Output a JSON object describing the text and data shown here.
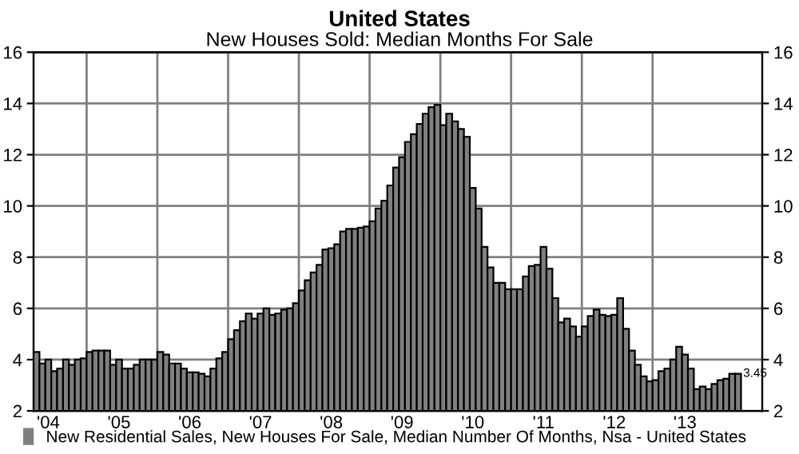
{
  "chart_data": {
    "type": "bar",
    "title": "United States",
    "subtitle": "New Houses Sold: Median Months For Sale",
    "categories": [
      null,
      null,
      "'04",
      null,
      null,
      null,
      null,
      null,
      null,
      null,
      null,
      null,
      null,
      null,
      "'05",
      null,
      null,
      null,
      null,
      null,
      null,
      null,
      null,
      null,
      null,
      null,
      "'06",
      null,
      null,
      null,
      null,
      null,
      null,
      null,
      null,
      null,
      null,
      null,
      "'07",
      null,
      null,
      null,
      null,
      null,
      null,
      null,
      null,
      null,
      null,
      null,
      "'08",
      null,
      null,
      null,
      null,
      null,
      null,
      null,
      null,
      null,
      null,
      null,
      "'09",
      null,
      null,
      null,
      null,
      null,
      null,
      null,
      null,
      null,
      null,
      null,
      "'10",
      null,
      null,
      null,
      null,
      null,
      null,
      null,
      null,
      null,
      null,
      null,
      "'11",
      null,
      null,
      null,
      null,
      null,
      null,
      null,
      null,
      null,
      null,
      null,
      "'12",
      null,
      null,
      null,
      null,
      null,
      null,
      null,
      null,
      null,
      null,
      null,
      "'13",
      null,
      null,
      null,
      null,
      null,
      null,
      null,
      null,
      null
    ],
    "series": [
      {
        "name": "New Residential Sales, New Houses For Sale, Median Number Of Months, Nsa - United States",
        "color": "#808080",
        "values": [
          4.3,
          3.85,
          4.0,
          3.55,
          3.65,
          4.0,
          3.8,
          4.0,
          4.05,
          4.3,
          4.35,
          4.35,
          4.35,
          3.8,
          4.0,
          3.65,
          3.65,
          3.8,
          4.0,
          4.0,
          4.0,
          4.3,
          4.2,
          3.85,
          3.85,
          3.65,
          3.5,
          3.5,
          3.45,
          3.35,
          3.65,
          4.05,
          4.3,
          4.8,
          5.15,
          5.5,
          5.8,
          5.6,
          5.8,
          6.0,
          5.75,
          5.8,
          5.95,
          6.0,
          6.2,
          6.7,
          7.1,
          7.4,
          7.7,
          8.3,
          8.35,
          8.5,
          9.0,
          9.1,
          9.1,
          9.15,
          9.2,
          9.4,
          9.9,
          10.2,
          10.8,
          11.5,
          11.9,
          12.5,
          12.8,
          13.2,
          13.6,
          13.85,
          13.95,
          13.15,
          13.6,
          13.3,
          13.0,
          12.7,
          10.7,
          9.9,
          8.4,
          7.6,
          7.0,
          7.0,
          6.75,
          6.75,
          6.75,
          7.25,
          7.65,
          7.7,
          8.4,
          7.55,
          6.4,
          5.45,
          5.6,
          5.3,
          4.9,
          5.3,
          5.7,
          5.95,
          5.75,
          5.7,
          5.75,
          6.4,
          5.2,
          4.35,
          3.8,
          3.35,
          3.15,
          3.2,
          3.55,
          3.65,
          4.0,
          4.5,
          4.2,
          3.65,
          2.85,
          2.95,
          2.85,
          3.05,
          3.2,
          3.25,
          3.45,
          3.45
        ]
      }
    ],
    "ylim": [
      2,
      16
    ],
    "yticks": [
      2,
      4,
      6,
      8,
      10,
      12,
      14,
      16
    ],
    "y2lim": [
      2,
      16
    ],
    "y2ticks": [
      2,
      4,
      6,
      8,
      10,
      12,
      14,
      16
    ],
    "annotations": [
      "3.45"
    ],
    "grid": true,
    "legend": "bottom"
  }
}
